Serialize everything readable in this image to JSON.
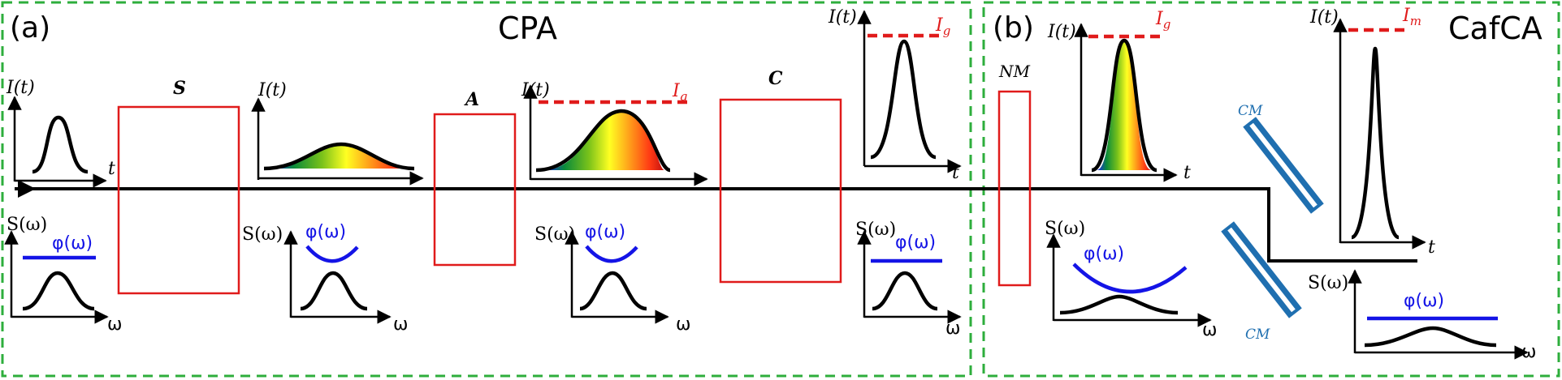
{
  "panels": {
    "a": {
      "tag": "(a)",
      "title": "CPA"
    },
    "b": {
      "tag": "(b)",
      "title": "CafCA"
    }
  },
  "labels": {
    "intensity": "I(t)",
    "spectrum": "S(ω)",
    "time": "t",
    "freq": "ω",
    "phase": "φ(ω)",
    "stretcher": "S",
    "amplifier": "A",
    "compressor": "C",
    "nonlinear_medium": "NM",
    "chirped_mirror": "CM",
    "level_g_main": "I",
    "level_g_sub": "g",
    "level_m_main": "I",
    "level_m_sub": "m"
  },
  "colors": {
    "frame": "#2eae3c",
    "element_box": "#e01b1b",
    "phase": "#1414e6",
    "mirror": "#1f6fb0"
  },
  "icons": [
    "arrow-head-icon",
    "rainbow-pulse-icon",
    "chirped-mirror-icon"
  ]
}
